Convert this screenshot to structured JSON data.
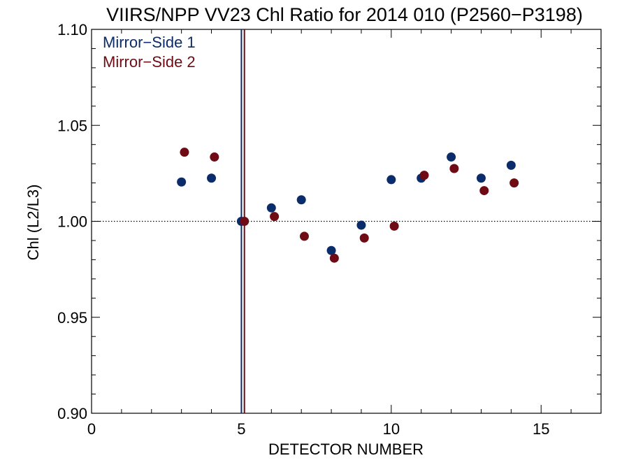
{
  "chart_data": {
    "type": "scatter",
    "title": "VIIRS/NPP VV23 Chl Ratio for 2014 010 (P2560−P3198)",
    "xlabel": "DETECTOR NUMBER",
    "ylabel": "Chl (L2/L3)",
    "xlim": [
      0,
      17
    ],
    "ylim": [
      0.9,
      1.1
    ],
    "x_ticks": [
      0,
      5,
      10,
      15
    ],
    "x_tick_labels": [
      "0",
      "5",
      "10",
      "15"
    ],
    "y_ticks": [
      0.9,
      0.95,
      1.0,
      1.05,
      1.1
    ],
    "y_tick_labels": [
      "0.90",
      "0.95",
      "1.00",
      "1.05",
      "1.10"
    ],
    "reference_line_y": 1.0,
    "legend_position": "top-left",
    "series": [
      {
        "name": "Mirror−Side 1",
        "color": "#0b2c6b",
        "x": [
          3,
          4,
          5,
          6,
          7,
          8,
          9,
          10,
          11,
          12,
          13,
          14
        ],
        "y": [
          1.0205,
          1.0225,
          1.0,
          1.007,
          1.0112,
          0.9848,
          0.998,
          1.0217,
          1.0225,
          1.0335,
          1.0225,
          1.0292
        ],
        "vline_x": 5
      },
      {
        "name": "Mirror−Side 2",
        "color": "#6e0b14",
        "x": [
          3.1,
          4.1,
          5.1,
          6.1,
          7.1,
          8.1,
          9.1,
          10.1,
          11.1,
          12.1,
          13.1,
          14.1
        ],
        "y": [
          1.036,
          1.0335,
          1.0,
          1.0025,
          0.9922,
          0.9808,
          0.9913,
          0.9975,
          1.024,
          1.0275,
          1.016,
          1.02
        ],
        "vline_x": 5.1
      }
    ]
  }
}
